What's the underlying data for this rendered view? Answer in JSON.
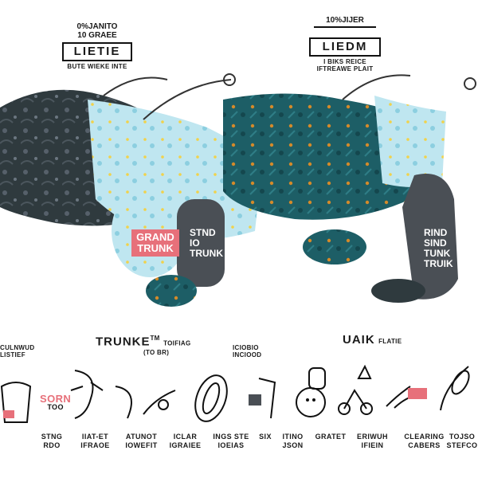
{
  "badges": [
    {
      "top1": "0%JANITO",
      "top2": "10 GRAEE",
      "title": "LIETIE",
      "bottom": "BUTE WIEKE INTE"
    },
    {
      "top1": "10%JIJER",
      "top2": "",
      "title": "LIEDM",
      "bottom": "I BIKS REICE",
      "bottom2": "IFTREAWE PLAIT"
    }
  ],
  "pouch_left": {
    "line1": "GRAND",
    "line2": "TRUNK"
  },
  "pouch_mid": {
    "line1": "STND",
    "line2": "IO",
    "line3": "TRUNK"
  },
  "pouch_right": {
    "line1": "RIND",
    "line2": "SIND",
    "line3": "TUNK",
    "line4": "TRUIK"
  },
  "features": {
    "left_title": "TRUNKE",
    "left_sup": "TM",
    "left_sub": "TOIFIAG",
    "left_mini": "(TO BR)",
    "right_title": "UAIK",
    "right_sub": "FLATIE"
  },
  "aux_labels": {
    "left": "CULNWUD",
    "left2": "LISTIEF",
    "middle": "ICIOBIO",
    "middle2": "INCIOOD"
  },
  "icons": [
    {
      "icon": "pouch-icon",
      "badge": "SORN",
      "badge2": "TOO",
      "caption1": "STNG",
      "caption2": "RDO"
    },
    {
      "icon": "ear-loop-icon",
      "caption1": "IIAT-ET",
      "caption2": "IFRAOE"
    },
    {
      "icon": "adjuster-icon",
      "caption1": "ATUNOT",
      "caption2": "IOWEFIT"
    },
    {
      "icon": "wash-icon",
      "caption1": "ICLAR",
      "caption2": "IGRAIEE"
    },
    {
      "icon": "loop-band-icon",
      "caption1": "INGS STE",
      "caption2": "IOEIAS"
    },
    {
      "icon": "tag-icon",
      "caption1": "SIX",
      "caption2": ""
    },
    {
      "icon": "person-icon",
      "caption1": "ITINO",
      "caption2": "JSON"
    },
    {
      "icon": "bike-icon",
      "caption1": "GRATET",
      "caption2": ""
    },
    {
      "icon": "star-icon",
      "caption1": "ERIWUH",
      "caption2": "IFIEIN"
    },
    {
      "icon": "clip-icon",
      "badge": "",
      "caption1": "CLEARING",
      "caption2": "CABERS"
    },
    {
      "icon": "ribbon-icon",
      "caption1": "TOJSO",
      "caption2": "STEFCO"
    }
  ],
  "colors": {
    "teal": "#1d5e66",
    "light_blue": "#bfe6f0",
    "coral": "#e7707a",
    "dark": "#2f3a3e"
  }
}
